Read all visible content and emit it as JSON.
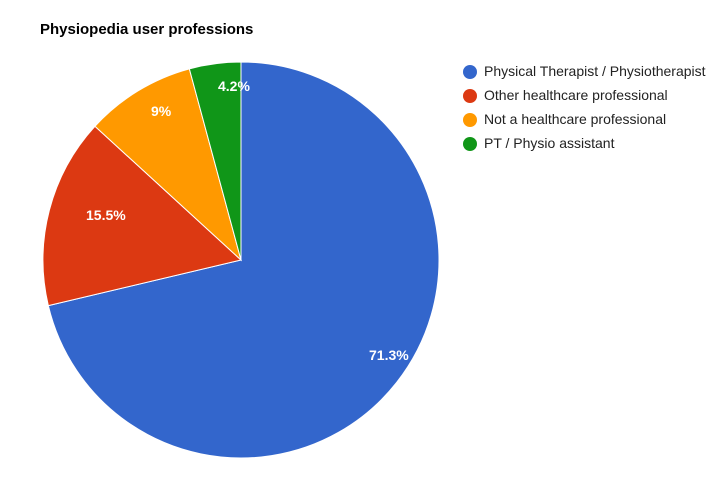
{
  "chart_data": {
    "type": "pie",
    "title": "Physiopedia user professions",
    "slices": [
      {
        "name": "Physical Therapist / Physiotherapist",
        "value": 71.3,
        "label": "71.3%",
        "color": "#3366cc"
      },
      {
        "name": "Other healthcare professional",
        "value": 15.5,
        "label": "15.5%",
        "color": "#dc3912"
      },
      {
        "name": "Not a healthcare professional",
        "value": 9,
        "label": "9%",
        "color": "#ff9900"
      },
      {
        "name": "PT / Physio assistant",
        "value": 4.2,
        "label": "4.2%",
        "color": "#109618"
      }
    ],
    "start_angle": "12 o'clock",
    "direction": "clockwise",
    "legend_position": "right"
  }
}
